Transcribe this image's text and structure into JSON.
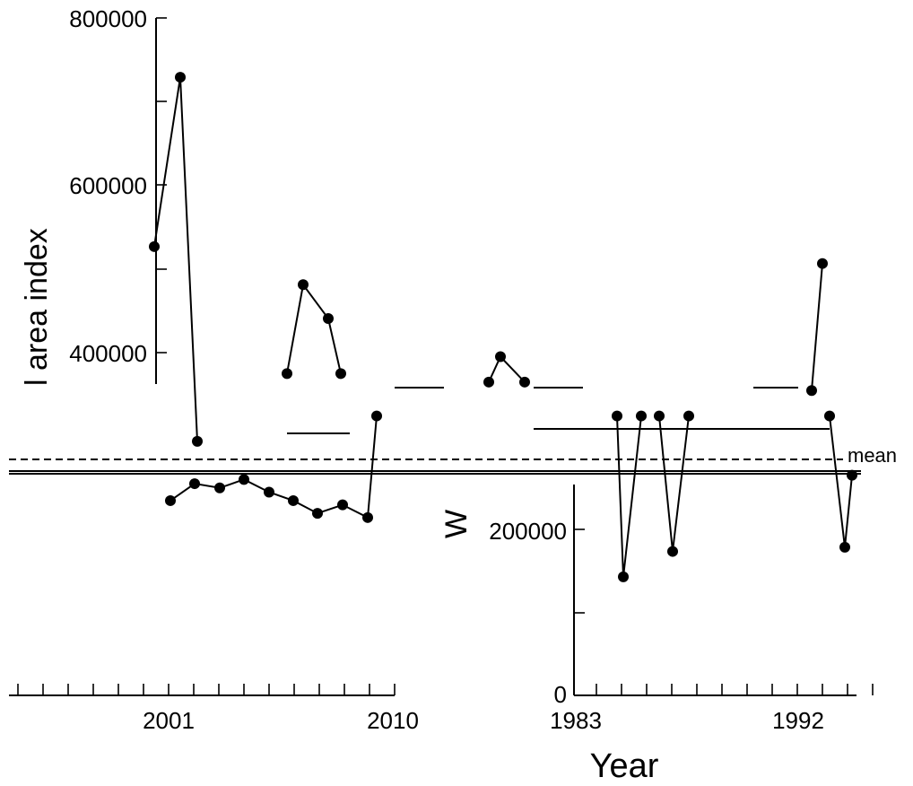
{
  "chart_data": {
    "type": "line",
    "ylabel_top": "l area index",
    "ylabel_mid": "W",
    "xlabel": "Year",
    "mean_label": "mean",
    "ylim": [
      0,
      800000
    ],
    "ytick_values": [
      0,
      200000,
      400000,
      600000,
      800000
    ],
    "ytick_labels": [
      "0",
      "200000",
      "400000",
      "600000",
      "800000"
    ],
    "xtick_labels": [
      "2001",
      "2010",
      "1983",
      "1992"
    ],
    "series": [
      {
        "values_top": [
          530000,
          730000
        ],
        "values_mid": [
          485000,
          445000
        ],
        "values_upper": [
          400000,
          510000
        ]
      }
    ],
    "left_panel_points": [
      {
        "year": 2000,
        "value": 530000
      },
      {
        "year": 2001,
        "value": 730000
      },
      {
        "year": 2002,
        "value": 250000
      },
      {
        "year": 2003,
        "value": 245000
      },
      {
        "year": 2004,
        "value": 255000
      },
      {
        "year": 2005,
        "value": 240000
      },
      {
        "year": 2006,
        "value": 230000
      },
      {
        "year": 2007,
        "value": 215000
      },
      {
        "year": 2008,
        "value": 485000
      },
      {
        "year": 2009,
        "value": 445000
      },
      {
        "year": 2010,
        "value": 225000
      }
    ],
    "right_panel_points": [
      {
        "year": 1984,
        "value": 140000
      },
      {
        "year": 1985,
        "value": 400000
      },
      {
        "year": 1986,
        "value": 170000
      },
      {
        "year": 1992,
        "value": 510000
      },
      {
        "year": 1993,
        "value": 175000
      }
    ]
  }
}
